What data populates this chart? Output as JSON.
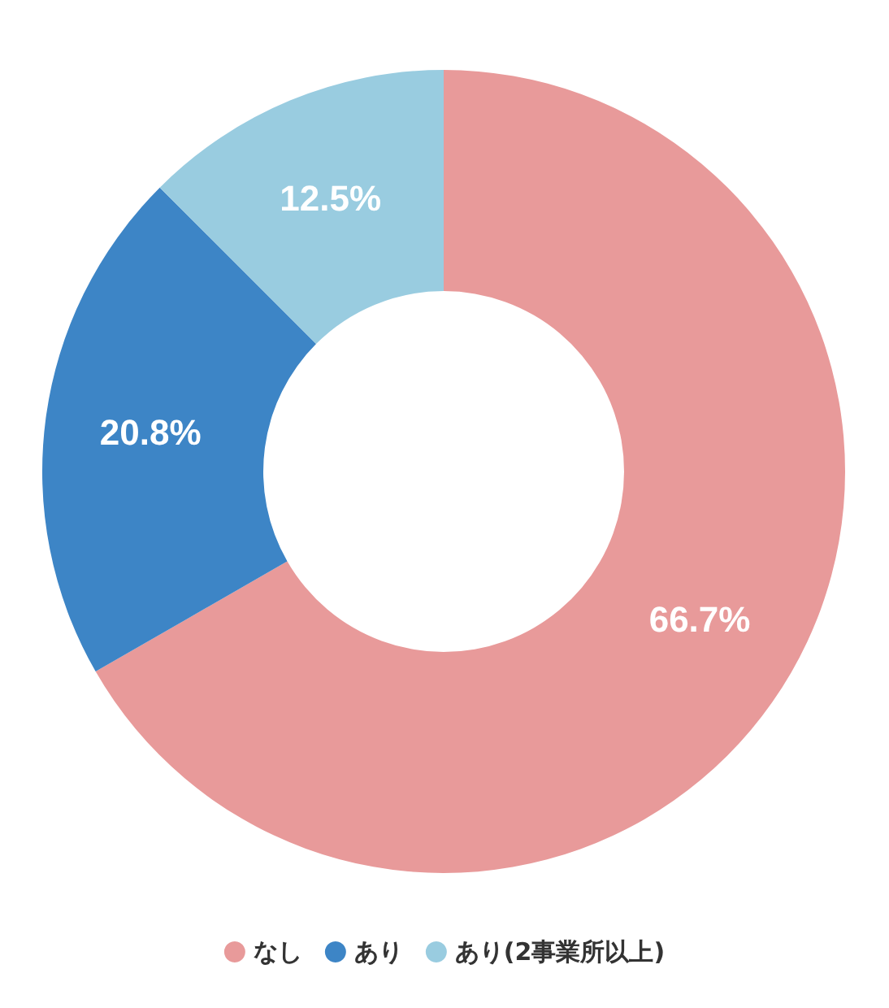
{
  "chart_data": {
    "type": "donut",
    "categories": [
      "なし",
      "あり",
      "あり(2事業所以上)"
    ],
    "values": [
      66.7,
      20.8,
      12.5
    ],
    "value_labels": [
      "66.7%",
      "20.8%",
      "12.5%"
    ],
    "colors": [
      "#e89a9a",
      "#3d85c6",
      "#99cce0"
    ],
    "legend": "bottom"
  }
}
